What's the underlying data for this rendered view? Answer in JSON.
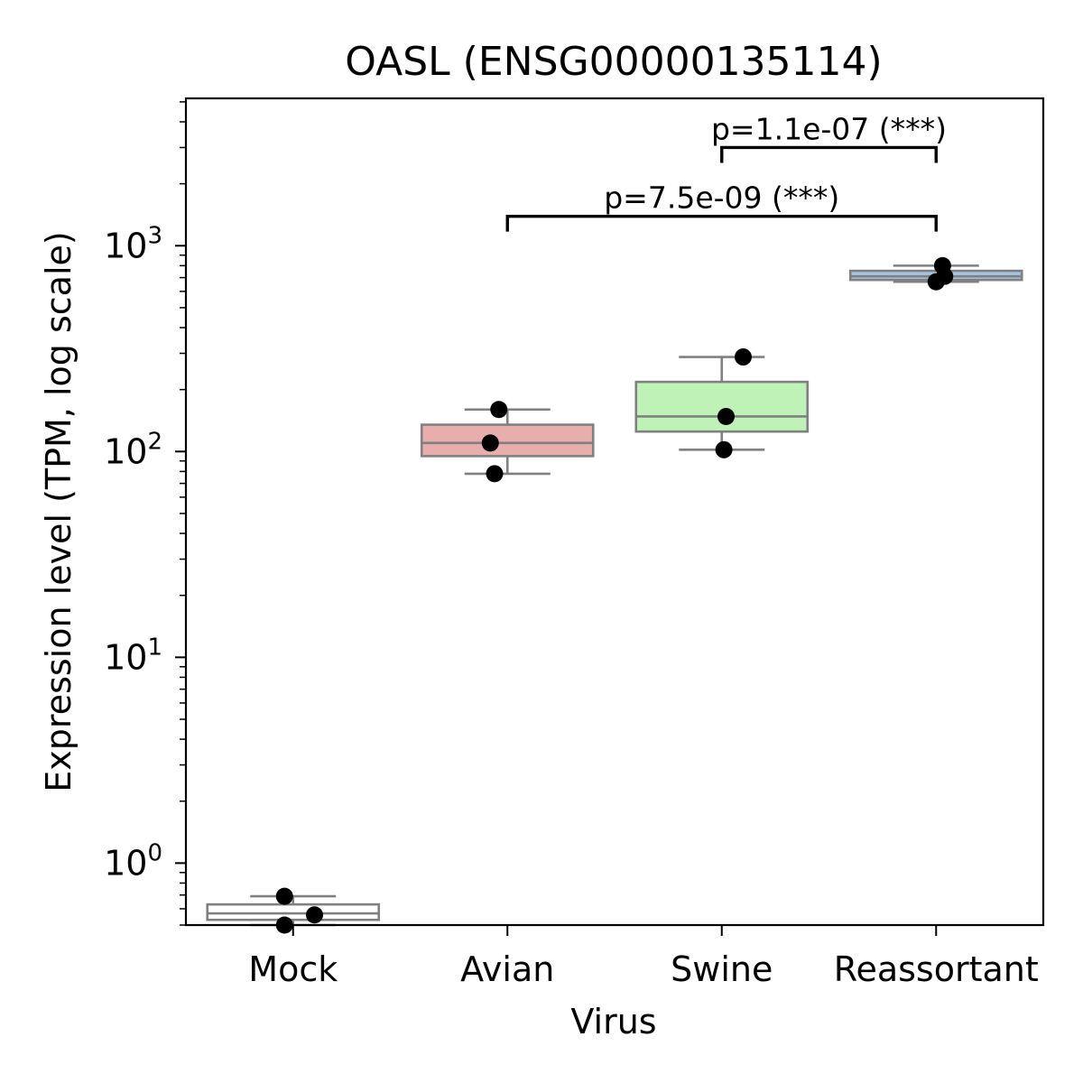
{
  "chart_data": {
    "type": "box",
    "title": "OASL (ENSG00000135114)",
    "xlabel": "Virus",
    "ylabel": "Expression level (TPM, log scale)",
    "yscale": "log",
    "ylim": [
      0.5,
      5200
    ],
    "yticks": [
      {
        "base": "10",
        "exp": "0",
        "value": 1
      },
      {
        "base": "10",
        "exp": "1",
        "value": 10
      },
      {
        "base": "10",
        "exp": "2",
        "value": 100
      },
      {
        "base": "10",
        "exp": "3",
        "value": 1000
      }
    ],
    "grid": false,
    "categories": [
      "Mock",
      "Avian",
      "Swine",
      "Reassortant"
    ],
    "boxes": [
      {
        "category": "Mock",
        "color": "#ffffff",
        "whisker_low": 0.5,
        "q1": 0.53,
        "median": 0.57,
        "q3": 0.63,
        "whisker_high": 0.69
      },
      {
        "category": "Avian",
        "color": "#e8aeae",
        "whisker_low": 78,
        "q1": 95,
        "median": 110,
        "q3": 135,
        "whisker_high": 160
      },
      {
        "category": "Swine",
        "color": "#bff2b7",
        "whisker_low": 102,
        "q1": 125,
        "median": 148,
        "q3": 218,
        "whisker_high": 288
      },
      {
        "category": "Reassortant",
        "color": "#a6c4e3",
        "whisker_low": 668,
        "q1": 682,
        "median": 710,
        "q3": 755,
        "whisker_high": 800
      }
    ],
    "points": [
      {
        "category": "Mock",
        "offset": -0.04,
        "value": 0.69
      },
      {
        "category": "Mock",
        "offset": 0.1,
        "value": 0.56
      },
      {
        "category": "Mock",
        "offset": -0.04,
        "value": 0.5
      },
      {
        "category": "Avian",
        "offset": -0.08,
        "value": 110
      },
      {
        "category": "Avian",
        "offset": -0.06,
        "value": 78
      },
      {
        "category": "Avian",
        "offset": -0.04,
        "value": 160
      },
      {
        "category": "Swine",
        "offset": 0.02,
        "value": 148
      },
      {
        "category": "Swine",
        "offset": 0.1,
        "value": 288
      },
      {
        "category": "Swine",
        "offset": 0.01,
        "value": 102
      },
      {
        "category": "Reassortant",
        "offset": 0.03,
        "value": 800
      },
      {
        "category": "Reassortant",
        "offset": 0.04,
        "value": 710
      },
      {
        "category": "Reassortant",
        "offset": 0.0,
        "value": 668
      }
    ],
    "annotations": [
      {
        "from": "Avian",
        "to": "Reassortant",
        "text": "p=7.5e-09 (***)",
        "value": 1390
      },
      {
        "from": "Swine",
        "to": "Reassortant",
        "text": "p=1.1e-07 (***)",
        "value": 3000
      }
    ]
  }
}
